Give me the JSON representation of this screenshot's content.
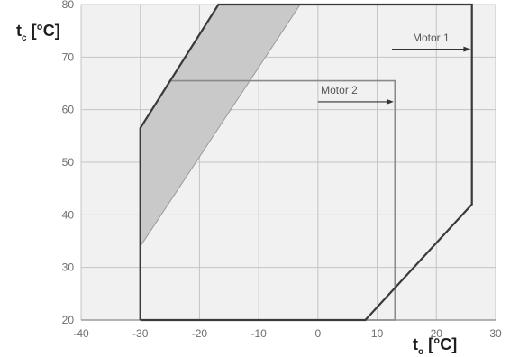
{
  "chart_data": {
    "type": "line",
    "xlabel": "to [°C]",
    "xlabel_main": "t",
    "xlabel_sub": "o",
    "xlabel_unit": " [°C]",
    "ylabel": "tc [°C]",
    "ylabel_main": "t",
    "ylabel_sub": "c",
    "ylabel_unit": " [°C]",
    "xlim": [
      -40,
      30
    ],
    "ylim": [
      20,
      80
    ],
    "x_ticks": [
      -40,
      -30,
      -20,
      -10,
      0,
      10,
      20,
      30
    ],
    "y_ticks": [
      20,
      30,
      40,
      50,
      60,
      70,
      80
    ],
    "grid": true,
    "series": [
      {
        "name": "Motor 1",
        "color": "#3a3a3a",
        "points": [
          [
            -30,
            20
          ],
          [
            -30,
            56.5
          ],
          [
            -16.8,
            80
          ],
          [
            26,
            80
          ],
          [
            26,
            42
          ],
          [
            8,
            20
          ],
          [
            -30,
            20
          ]
        ]
      },
      {
        "name": "Motor 2",
        "color": "#8a8a8a",
        "points": [
          [
            -30,
            20
          ],
          [
            -30,
            56.5
          ],
          [
            -25,
            65.5
          ],
          [
            13,
            65.5
          ],
          [
            13,
            20
          ],
          [
            -30,
            20
          ]
        ]
      }
    ],
    "shaded_region": {
      "color": "#c9c9c9",
      "points": [
        [
          -30,
          34
        ],
        [
          -30,
          56.5
        ],
        [
          -16.8,
          80
        ],
        [
          -3,
          80
        ],
        [
          -30,
          34
        ]
      ]
    }
  }
}
